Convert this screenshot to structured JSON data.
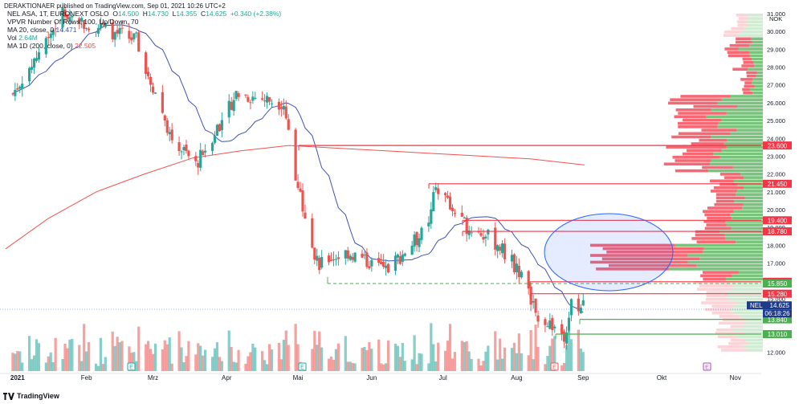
{
  "header": {
    "publisher_line": "DERAKTIONAER published on TradingView.com, Sep 01, 2021 10:26 UTC+2"
  },
  "legend": {
    "symbol": "NEL ASA, 1T, EURONEXT OSLO",
    "open_label": "O",
    "open": "14.500",
    "high_label": "H",
    "high": "14.730",
    "low_label": "L",
    "low": "14.355",
    "close_label": "C",
    "close": "14.625",
    "change": "+0.340 (+2.38%)",
    "vpvr": "VPVR Number Of Rows, 100, Up/Down, 70",
    "ma20_label": "MA 20, close, 0",
    "ma20_value": "14.471",
    "vol_label": "Vol",
    "vol_value": "2.64M",
    "ma200_label": "MA 1D (200, close, 0)",
    "ma200_value": "22.505"
  },
  "price_axis": {
    "currency": "NOK",
    "ticks": [
      "31.000",
      "30.000",
      "29.000",
      "28.000",
      "27.000",
      "26.000",
      "25.000",
      "24.000",
      "23.000",
      "22.000",
      "21.000",
      "20.000",
      "19.000",
      "18.000",
      "17.000",
      "16.000",
      "15.000",
      "14.000",
      "13.000",
      "12.000"
    ]
  },
  "time_axis": {
    "labels": [
      "2021",
      "Feb",
      "Mrz",
      "Apr",
      "Mai",
      "Jun",
      "Jul",
      "Aug",
      "Sep",
      "Okt",
      "Nov"
    ]
  },
  "levels": [
    {
      "value": 23.6,
      "label": "23.600",
      "color": "#f23645"
    },
    {
      "value": 21.45,
      "label": "21.450",
      "color": "#f23645"
    },
    {
      "value": 19.4,
      "label": "19.400",
      "color": "#f23645"
    },
    {
      "value": 18.78,
      "label": "18.780",
      "color": "#f23645"
    },
    {
      "value": 15.95,
      "label": "15.950",
      "color": "#f23645"
    },
    {
      "value": 15.85,
      "label": "15.850",
      "color": "#4caf50",
      "dashed": true
    },
    {
      "value": 15.28,
      "label": "15.280",
      "color": "#f23645"
    },
    {
      "value": 13.84,
      "label": "13.840",
      "color": "#4caf50"
    },
    {
      "value": 13.01,
      "label": "13.010",
      "color": "#4caf50"
    }
  ],
  "current_price": {
    "symbol": "NEL",
    "value": "14.625",
    "countdown": "06:18:26",
    "color": "#1e3a8a"
  },
  "event_markers": [
    "E",
    "E",
    "E",
    "E"
  ],
  "colors": {
    "up": "#26a69a",
    "down": "#ef5350",
    "ma20": "#3f51b5",
    "ma200": "#ef5350",
    "vp_up": "#4caf50",
    "vp_down": "#f23645",
    "ellipse": "#2962ff"
  },
  "footer": {
    "brand": "TradingView"
  },
  "chart_data": {
    "type": "candlestick",
    "x_range": [
      "2021-01-01",
      "2021-11-30"
    ],
    "y_range": [
      11.2,
      31.2
    ],
    "y_scale": "linear",
    "grid": false,
    "key_points": [
      {
        "date": "2021-01-04",
        "price": 26.5
      },
      {
        "date": "2021-01-25",
        "price": 31.0
      },
      {
        "date": "2021-02-25",
        "price": 29.5
      },
      {
        "date": "2021-03-12",
        "price": 24.0
      },
      {
        "date": "2021-03-22",
        "price": 22.5
      },
      {
        "date": "2021-04-08",
        "price": 26.5
      },
      {
        "date": "2021-04-28",
        "price": 26.0
      },
      {
        "date": "2021-05-03",
        "price": 22.0
      },
      {
        "date": "2021-05-12",
        "price": 17.0
      },
      {
        "date": "2021-05-25",
        "price": 17.6
      },
      {
        "date": "2021-06-10",
        "price": 16.6
      },
      {
        "date": "2021-06-28",
        "price": 19.0
      },
      {
        "date": "2021-07-01",
        "price": 21.4
      },
      {
        "date": "2021-07-12",
        "price": 19.2
      },
      {
        "date": "2021-07-25",
        "price": 18.3
      },
      {
        "date": "2021-08-05",
        "price": 16.6
      },
      {
        "date": "2021-08-12",
        "price": 14.2
      },
      {
        "date": "2021-08-20",
        "price": 13.4
      },
      {
        "date": "2021-08-24",
        "price": 13.0
      },
      {
        "date": "2021-08-27",
        "price": 14.6
      },
      {
        "date": "2021-09-01",
        "price": 14.625
      }
    ]
  }
}
